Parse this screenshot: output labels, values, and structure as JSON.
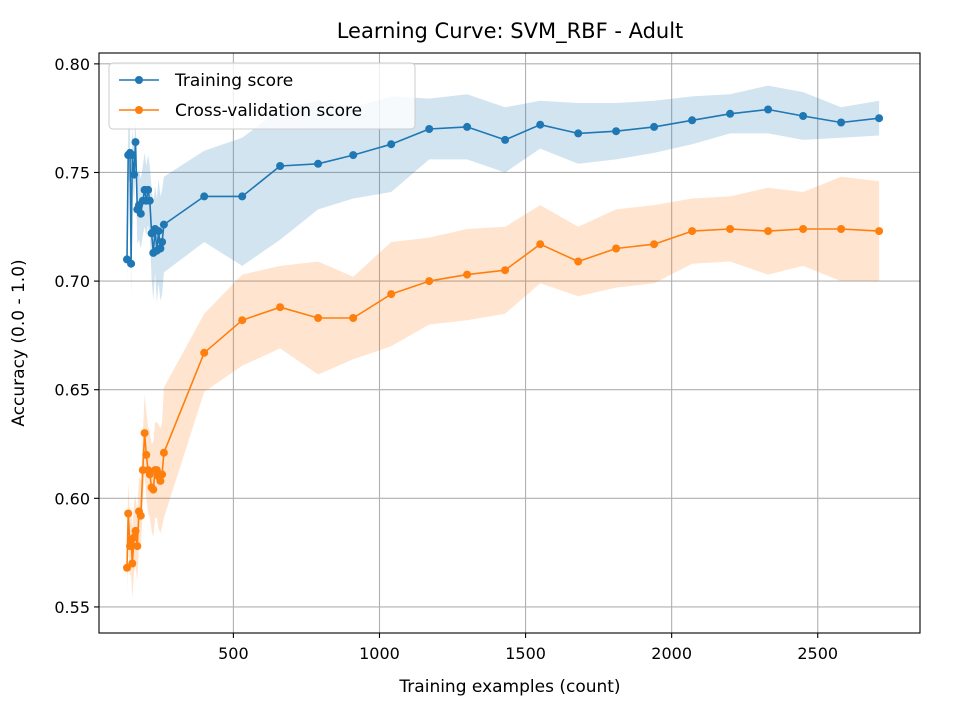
{
  "chart_data": {
    "type": "line",
    "title": "Learning Curve: SVM_RBF - Adult",
    "xlabel": "Training examples (count)",
    "ylabel": "Accuracy (0.0 - 1.0)",
    "xlim": [
      40,
      2850
    ],
    "ylim": [
      0.538,
      0.805
    ],
    "xticks": [
      500,
      1000,
      1500,
      2000,
      2500
    ],
    "yticks": [
      0.55,
      0.6,
      0.65,
      0.7,
      0.75,
      0.8
    ],
    "xtick_labels": [
      "500",
      "1000",
      "1500",
      "2000",
      "2500"
    ],
    "ytick_labels": [
      "0.55",
      "0.60",
      "0.65",
      "0.70",
      "0.75",
      "0.80"
    ],
    "grid": true,
    "legend": "upper-left",
    "legend_entries": [
      "Training score",
      "Cross-validation score"
    ],
    "series": [
      {
        "name": "Training score",
        "color": "#1f77b4",
        "x": [
          136,
          140,
          146,
          150,
          154,
          160,
          165,
          171,
          177,
          183,
          190,
          196,
          202,
          208,
          214,
          220,
          226,
          232,
          238,
          244,
          250,
          256,
          262,
          400,
          530,
          660,
          790,
          910,
          1040,
          1170,
          1300,
          1430,
          1550,
          1680,
          1810,
          1940,
          2070,
          2200,
          2330,
          2450,
          2580,
          2710
        ],
        "y": [
          0.71,
          0.758,
          0.759,
          0.708,
          0.758,
          0.749,
          0.764,
          0.733,
          0.735,
          0.731,
          0.737,
          0.742,
          0.737,
          0.742,
          0.737,
          0.722,
          0.713,
          0.724,
          0.714,
          0.723,
          0.715,
          0.718,
          0.726,
          0.739,
          0.739,
          0.753,
          0.754,
          0.758,
          0.763,
          0.77,
          0.771,
          0.765,
          0.772,
          0.768,
          0.769,
          0.771,
          0.774,
          0.777,
          0.779,
          0.776,
          0.773,
          0.775
        ],
        "upper": [
          0.722,
          0.77,
          0.772,
          0.722,
          0.77,
          0.762,
          0.776,
          0.749,
          0.751,
          0.747,
          0.753,
          0.759,
          0.753,
          0.758,
          0.753,
          0.743,
          0.735,
          0.744,
          0.738,
          0.747,
          0.739,
          0.742,
          0.748,
          0.76,
          0.766,
          0.779,
          0.783,
          0.78,
          0.785,
          0.784,
          0.786,
          0.78,
          0.783,
          0.782,
          0.782,
          0.783,
          0.785,
          0.786,
          0.79,
          0.787,
          0.78,
          0.783
        ],
        "lower": [
          0.698,
          0.746,
          0.746,
          0.694,
          0.746,
          0.736,
          0.752,
          0.717,
          0.719,
          0.715,
          0.721,
          0.725,
          0.721,
          0.726,
          0.721,
          0.701,
          0.691,
          0.704,
          0.69,
          0.699,
          0.691,
          0.694,
          0.704,
          0.718,
          0.707,
          0.719,
          0.733,
          0.738,
          0.741,
          0.756,
          0.756,
          0.75,
          0.761,
          0.754,
          0.756,
          0.759,
          0.763,
          0.768,
          0.768,
          0.765,
          0.766,
          0.767
        ]
      },
      {
        "name": "Cross-validation score",
        "color": "#ff7f0e",
        "x": [
          136,
          140,
          146,
          150,
          154,
          160,
          165,
          171,
          177,
          183,
          190,
          196,
          202,
          208,
          214,
          220,
          226,
          232,
          238,
          244,
          250,
          256,
          262,
          400,
          530,
          660,
          790,
          910,
          1040,
          1170,
          1300,
          1430,
          1550,
          1680,
          1810,
          1940,
          2070,
          2200,
          2330,
          2450,
          2580,
          2710
        ],
        "y": [
          0.568,
          0.593,
          0.578,
          0.581,
          0.57,
          0.582,
          0.585,
          0.578,
          0.594,
          0.592,
          0.613,
          0.63,
          0.62,
          0.613,
          0.611,
          0.605,
          0.604,
          0.613,
          0.613,
          0.61,
          0.608,
          0.611,
          0.621,
          0.667,
          0.682,
          0.688,
          0.683,
          0.683,
          0.694,
          0.7,
          0.703,
          0.705,
          0.717,
          0.709,
          0.715,
          0.717,
          0.723,
          0.724,
          0.723,
          0.724,
          0.724,
          0.723
        ],
        "upper": [
          0.58,
          0.607,
          0.592,
          0.597,
          0.586,
          0.598,
          0.601,
          0.594,
          0.61,
          0.608,
          0.629,
          0.648,
          0.64,
          0.633,
          0.631,
          0.625,
          0.626,
          0.635,
          0.635,
          0.634,
          0.632,
          0.635,
          0.651,
          0.685,
          0.703,
          0.707,
          0.709,
          0.702,
          0.718,
          0.72,
          0.724,
          0.725,
          0.735,
          0.725,
          0.733,
          0.735,
          0.738,
          0.739,
          0.743,
          0.741,
          0.748,
          0.746
        ],
        "lower": [
          0.556,
          0.579,
          0.564,
          0.565,
          0.554,
          0.566,
          0.569,
          0.562,
          0.578,
          0.576,
          0.597,
          0.612,
          0.6,
          0.593,
          0.591,
          0.585,
          0.582,
          0.591,
          0.591,
          0.586,
          0.584,
          0.587,
          0.591,
          0.649,
          0.661,
          0.669,
          0.657,
          0.664,
          0.67,
          0.68,
          0.682,
          0.685,
          0.699,
          0.693,
          0.697,
          0.699,
          0.708,
          0.709,
          0.703,
          0.707,
          0.7,
          0.7
        ]
      }
    ]
  }
}
